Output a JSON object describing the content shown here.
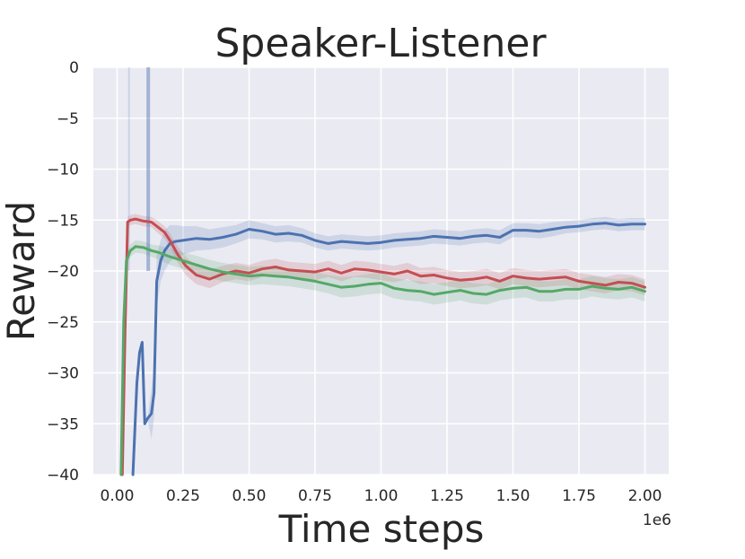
{
  "chart_data": {
    "type": "line",
    "title": "Speaker-Listener",
    "xlabel": "Time steps",
    "ylabel": "Reward",
    "x_offset_label": "1e6",
    "xlim": [
      -0.09,
      2.09
    ],
    "ylim": [
      -40,
      0
    ],
    "xticks": [
      0.0,
      0.25,
      0.5,
      0.75,
      1.0,
      1.25,
      1.5,
      1.75,
      2.0
    ],
    "xtick_labels": [
      "0.00",
      "0.25",
      "0.50",
      "0.75",
      "1.00",
      "1.25",
      "1.50",
      "1.75",
      "2.00"
    ],
    "yticks": [
      0,
      -5,
      -10,
      -15,
      -20,
      -25,
      -30,
      -35,
      -40
    ],
    "ytick_labels": [
      "0",
      "−5",
      "−10",
      "−15",
      "−20",
      "−25",
      "−30",
      "−35",
      "−40"
    ],
    "grid": true,
    "legend": "none",
    "background": "#eaeaf2",
    "series": [
      {
        "color": "#4c72b0",
        "x": [
          0.06,
          0.075,
          0.085,
          0.095,
          0.105,
          0.115,
          0.13,
          0.14,
          0.15,
          0.165,
          0.18,
          0.2,
          0.22,
          0.25,
          0.3,
          0.35,
          0.4,
          0.45,
          0.5,
          0.55,
          0.6,
          0.65,
          0.7,
          0.75,
          0.8,
          0.85,
          0.9,
          0.95,
          1.0,
          1.05,
          1.1,
          1.15,
          1.2,
          1.25,
          1.3,
          1.35,
          1.4,
          1.45,
          1.5,
          1.55,
          1.6,
          1.65,
          1.7,
          1.75,
          1.8,
          1.85,
          1.9,
          1.95,
          2.0
        ],
        "y": [
          -40,
          -31,
          -28,
          -27,
          -35,
          -34.5,
          -34,
          -32,
          -21,
          -19,
          -18,
          -17.3,
          -17.1,
          -17.0,
          -16.8,
          -16.9,
          -16.7,
          -16.4,
          -15.9,
          -16.1,
          -16.4,
          -16.3,
          -16.5,
          -17.0,
          -17.3,
          -17.1,
          -17.2,
          -17.3,
          -17.2,
          -17.0,
          -16.9,
          -16.8,
          -16.6,
          -16.7,
          -16.8,
          -16.6,
          -16.5,
          -16.7,
          -16.0,
          -16.0,
          -16.1,
          -15.9,
          -15.7,
          -15.6,
          -15.4,
          -15.3,
          -15.5,
          -15.4,
          -15.4
        ],
        "band": [
          0,
          0,
          0,
          0,
          0,
          0,
          2.5,
          2.5,
          2.5,
          2.0,
          2.0,
          1.8,
          1.6,
          1.4,
          1.2,
          1.0,
          1.0,
          0.9,
          0.9,
          0.8,
          0.8,
          0.8,
          0.7,
          0.7,
          0.7,
          0.7,
          0.7,
          0.7,
          0.7,
          0.7,
          0.7,
          0.7,
          0.7,
          0.7,
          0.7,
          0.7,
          0.7,
          0.7,
          0.7,
          0.7,
          0.7,
          0.7,
          0.6,
          0.6,
          0.6,
          0.6,
          0.6,
          0.6,
          0.6
        ]
      },
      {
        "color": "#c44e52",
        "x": [
          0.02,
          0.03,
          0.04,
          0.05,
          0.07,
          0.1,
          0.13,
          0.15,
          0.18,
          0.2,
          0.23,
          0.26,
          0.3,
          0.35,
          0.4,
          0.45,
          0.5,
          0.55,
          0.6,
          0.65,
          0.7,
          0.75,
          0.8,
          0.85,
          0.9,
          0.95,
          1.0,
          1.05,
          1.1,
          1.15,
          1.2,
          1.25,
          1.3,
          1.35,
          1.4,
          1.45,
          1.5,
          1.55,
          1.6,
          1.65,
          1.7,
          1.75,
          1.8,
          1.85,
          1.9,
          1.95,
          2.0
        ],
        "y": [
          -40,
          -26,
          -15.2,
          -15.0,
          -14.9,
          -15.1,
          -15.2,
          -15.6,
          -16.2,
          -17.0,
          -18.4,
          -19.5,
          -20.4,
          -20.8,
          -20.3,
          -20.0,
          -20.2,
          -19.8,
          -19.6,
          -19.9,
          -20.0,
          -20.1,
          -19.8,
          -20.2,
          -19.8,
          -19.9,
          -20.1,
          -20.3,
          -20.0,
          -20.5,
          -20.4,
          -20.7,
          -20.9,
          -20.8,
          -20.6,
          -21.0,
          -20.5,
          -20.7,
          -20.8,
          -20.7,
          -20.6,
          -21.0,
          -21.2,
          -21.4,
          -21.1,
          -21.2,
          -21.6
        ],
        "band": [
          0,
          0,
          0.5,
          0.5,
          0.5,
          0.5,
          0.5,
          0.6,
          0.6,
          0.7,
          0.8,
          0.9,
          0.9,
          0.9,
          0.8,
          0.8,
          0.8,
          0.8,
          0.8,
          0.8,
          0.8,
          0.8,
          0.8,
          0.8,
          0.8,
          0.8,
          0.8,
          0.8,
          0.8,
          0.8,
          0.8,
          0.8,
          0.8,
          0.8,
          0.8,
          0.8,
          0.8,
          0.8,
          0.8,
          0.8,
          0.8,
          0.8,
          0.8,
          0.8,
          0.8,
          0.8,
          0.8
        ]
      },
      {
        "color": "#55a868",
        "x": [
          0.015,
          0.025,
          0.035,
          0.05,
          0.07,
          0.1,
          0.13,
          0.16,
          0.2,
          0.25,
          0.3,
          0.35,
          0.4,
          0.45,
          0.5,
          0.55,
          0.6,
          0.65,
          0.7,
          0.75,
          0.8,
          0.85,
          0.9,
          0.95,
          1.0,
          1.05,
          1.1,
          1.15,
          1.2,
          1.25,
          1.3,
          1.35,
          1.4,
          1.45,
          1.5,
          1.55,
          1.6,
          1.65,
          1.7,
          1.75,
          1.8,
          1.85,
          1.9,
          1.95,
          2.0
        ],
        "y": [
          -40,
          -25,
          -19,
          -18.0,
          -17.6,
          -17.7,
          -18.0,
          -18.2,
          -18.6,
          -19.0,
          -19.4,
          -19.8,
          -20.1,
          -20.3,
          -20.5,
          -20.4,
          -20.5,
          -20.6,
          -20.8,
          -21.0,
          -21.3,
          -21.6,
          -21.5,
          -21.3,
          -21.2,
          -21.7,
          -21.9,
          -22.0,
          -22.3,
          -22.1,
          -21.9,
          -22.2,
          -22.3,
          -21.9,
          -21.7,
          -21.6,
          -22.0,
          -22.0,
          -21.8,
          -21.8,
          -21.5,
          -21.7,
          -21.8,
          -21.6,
          -22.0
        ],
        "band": [
          0,
          0,
          0.6,
          0.6,
          0.6,
          0.6,
          0.6,
          0.7,
          0.8,
          0.8,
          0.9,
          0.9,
          0.9,
          0.9,
          0.9,
          0.9,
          0.9,
          0.9,
          0.9,
          0.9,
          0.9,
          1.0,
          1.0,
          1.0,
          1.0,
          1.0,
          1.0,
          1.0,
          1.0,
          1.0,
          1.0,
          1.0,
          1.0,
          1.0,
          1.0,
          1.0,
          1.0,
          1.0,
          1.0,
          1.0,
          1.0,
          1.0,
          1.0,
          1.0,
          1.0
        ]
      }
    ]
  }
}
